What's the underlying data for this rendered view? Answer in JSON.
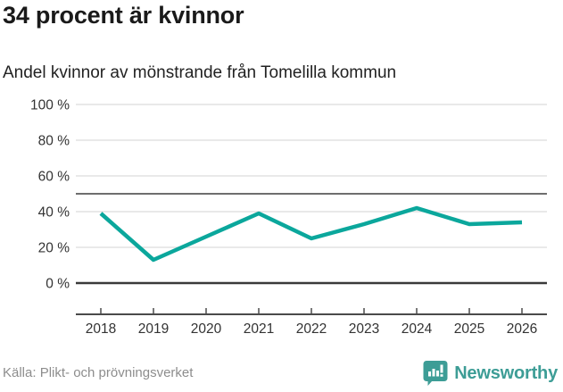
{
  "chart_data": {
    "type": "line",
    "title": "34 procent är kvinnor",
    "subtitle": "Andel kvinnor av mönstrande från Tomelilla kommun",
    "x": [
      "2018",
      "2019",
      "2020",
      "2021",
      "2022",
      "2023",
      "2024",
      "2025",
      "2026"
    ],
    "series": [
      {
        "name": "Andel kvinnor",
        "values": [
          39,
          13,
          26,
          39,
          25,
          33,
          42,
          33,
          34
        ]
      }
    ],
    "unit": "%",
    "ylim": [
      0,
      100
    ],
    "yticks": [
      0,
      20,
      40,
      60,
      80,
      100
    ],
    "ytick_suffix": " %",
    "reference_line": 50,
    "grid": true,
    "legend": "none",
    "source": "Källa: Plikt- och prövningsverket"
  },
  "branding": {
    "name": "Newsworthy",
    "logo_icon": "bar-chart-speech-bubble"
  },
  "colors": {
    "line": "#0ba79c",
    "brand": "#3d9d96",
    "grid": "#e2e2e2",
    "zero_line": "#3a3a3a",
    "reference_line": "#6e6e6e",
    "axis": "#4a4a4a",
    "tick_text": "#333333",
    "muted_text": "#8d8d8d"
  }
}
